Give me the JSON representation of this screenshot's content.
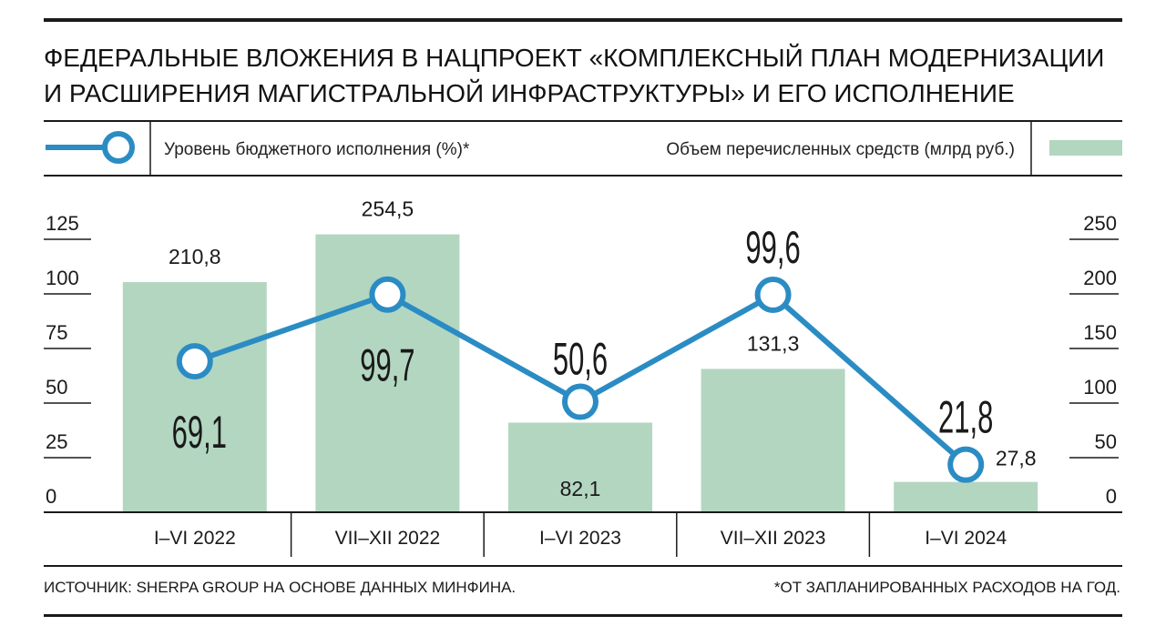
{
  "title": {
    "line1": "ФЕДЕРАЛЬНЫЕ ВЛОЖЕНИЯ В НАЦПРОЕКТ «КОМПЛЕКСНЫЙ ПЛАН МОДЕРНИЗАЦИИ",
    "line2": "И РАСШИРЕНИЯ МАГИСТРАЛЬНОЙ ИНФРАСТРУКТУРЫ» И ЕГО ИСПОЛНЕНИЕ"
  },
  "legend": {
    "line_label": "Уровень бюджетного исполнения (%)*",
    "bar_label": "Объем перечисленных средств (млрд руб.)"
  },
  "colors": {
    "line": "#2b8cc4",
    "bar": "#b3d6c1",
    "text": "#1a1a1a"
  },
  "chart_data": {
    "type": "bar",
    "categories": [
      "I–VI 2022",
      "VII–XII 2022",
      "I–VI 2023",
      "VII–XII 2023",
      "I–VI 2024"
    ],
    "series": [
      {
        "name": "Объем перечисленных средств (млрд руб.)",
        "type": "bar",
        "axis": "right",
        "values": [
          210.8,
          254.5,
          82.1,
          131.3,
          27.8
        ],
        "labels": [
          "210,8",
          "254,5",
          "82,1",
          "131,3",
          "27,8"
        ]
      },
      {
        "name": "Уровень бюджетного исполнения (%)*",
        "type": "line",
        "axis": "left",
        "values": [
          69.1,
          99.7,
          50.6,
          99.6,
          21.8
        ],
        "labels": [
          "69,1",
          "99,7",
          "50,6",
          "99,6",
          "21,8"
        ]
      }
    ],
    "left_axis": {
      "ticks": [
        "0",
        "25",
        "50",
        "75",
        "100",
        "125"
      ],
      "ylim": [
        0,
        125
      ]
    },
    "right_axis": {
      "ticks": [
        "0",
        "50",
        "100",
        "150",
        "200",
        "250"
      ],
      "ylim": [
        0,
        250
      ]
    },
    "grid": false,
    "legend_position": "top"
  },
  "footer": {
    "source": "ИСТОЧНИК: SHERPA GROUP НА ОСНОВЕ ДАННЫХ МИНФИНА.",
    "note": "*ОТ ЗАПЛАНИРОВАННЫХ РАСХОДОВ НА ГОД."
  }
}
